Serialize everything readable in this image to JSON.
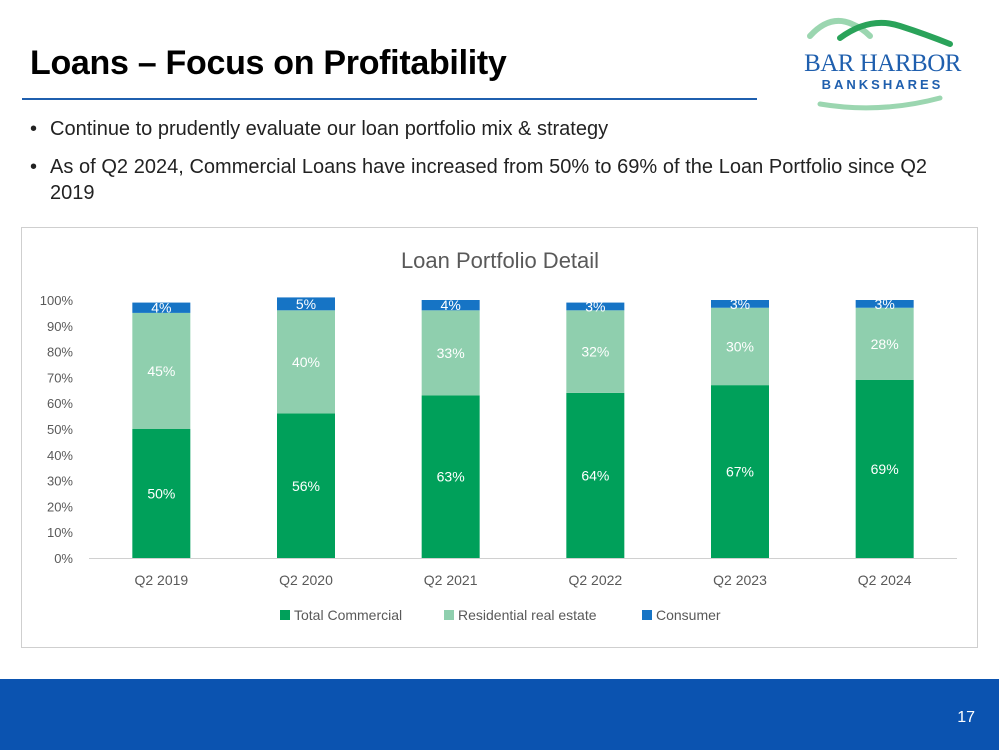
{
  "slide": {
    "title": "Loans – Focus on Profitability",
    "bullets": [
      "Continue to prudently evaluate our loan portfolio mix & strategy",
      "As of Q2 2024, Commercial Loans have increased from 50% to 69% of the Loan Portfolio since Q2 2019"
    ],
    "page_number": "17"
  },
  "logo": {
    "line1": "BAR HARBOR",
    "line2": "BANKSHARES",
    "colors": {
      "navy": "#1f5fae",
      "green": "#2aa35a",
      "light_green": "#9bd6b0"
    }
  },
  "colors": {
    "title_rule": "#1f5fae",
    "footer": "#0b53b0",
    "commercial": "#00a05a",
    "residential": "#8fcfae",
    "consumer": "#1674c5"
  },
  "chart_data": {
    "type": "bar",
    "stacked": true,
    "title": "Loan Portfolio Detail",
    "categories": [
      "Q2 2019",
      "Q2 2020",
      "Q2 2021",
      "Q2 2022",
      "Q2 2023",
      "Q2 2024"
    ],
    "series": [
      {
        "name": "Total Commercial",
        "values": [
          50,
          56,
          63,
          64,
          67,
          69
        ],
        "labels": [
          "50%",
          "56%",
          "63%",
          "64%",
          "67%",
          "69%"
        ]
      },
      {
        "name": "Residential real estate",
        "values": [
          45,
          40,
          33,
          32,
          30,
          28
        ],
        "labels": [
          "45%",
          "40%",
          "33%",
          "32%",
          "30%",
          "28%"
        ]
      },
      {
        "name": "Consumer",
        "values": [
          4,
          5,
          4,
          3,
          3,
          3
        ],
        "labels": [
          "4%",
          "5%",
          "4%",
          "3%",
          "3%",
          "3%"
        ]
      }
    ],
    "y_ticks": [
      "0%",
      "10%",
      "20%",
      "30%",
      "40%",
      "50%",
      "60%",
      "70%",
      "80%",
      "90%",
      "100%"
    ],
    "ylim": [
      0,
      100
    ],
    "xlabel": "",
    "ylabel": "",
    "legend_position": "bottom",
    "grid": false
  }
}
